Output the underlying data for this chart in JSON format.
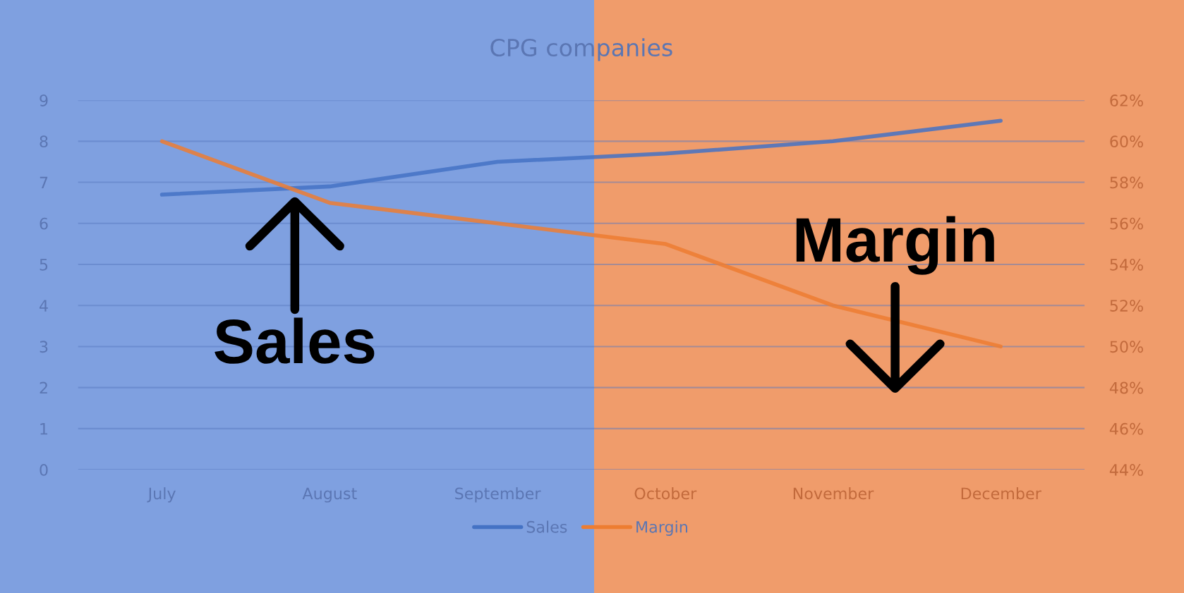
{
  "chart_data": {
    "type": "line",
    "title": "CPG companies",
    "categories": [
      "July",
      "August",
      "September",
      "October",
      "November",
      "December"
    ],
    "series": [
      {
        "name": "Sales",
        "color": "#4472c4",
        "values": [
          6.7,
          6.9,
          7.5,
          7.7,
          8.0,
          8.5
        ]
      },
      {
        "name": "Margin",
        "color": "#ed7d31",
        "axis": "y2",
        "values": [
          60,
          57,
          56,
          55,
          52,
          50
        ]
      }
    ],
    "ylim": [
      0,
      9
    ],
    "yticks": [
      0,
      1,
      2,
      3,
      4,
      5,
      6,
      7,
      8,
      9
    ],
    "y2lim": [
      44,
      62
    ],
    "y2ticks": [
      {
        "value": 44,
        "label": "44%"
      },
      {
        "value": 46,
        "label": "46%"
      },
      {
        "value": 48,
        "label": "48%"
      },
      {
        "value": 50,
        "label": "50%"
      },
      {
        "value": 52,
        "label": "52%"
      },
      {
        "value": 54,
        "label": "54%"
      },
      {
        "value": 56,
        "label": "56%"
      },
      {
        "value": 58,
        "label": "58%"
      },
      {
        "value": 60,
        "label": "60%"
      },
      {
        "value": 62,
        "label": "62%"
      }
    ],
    "grid": "y",
    "legend": "bottom",
    "marker": "none",
    "line_style": "solid",
    "annotations": [
      "Sales",
      "Margin"
    ]
  }
}
